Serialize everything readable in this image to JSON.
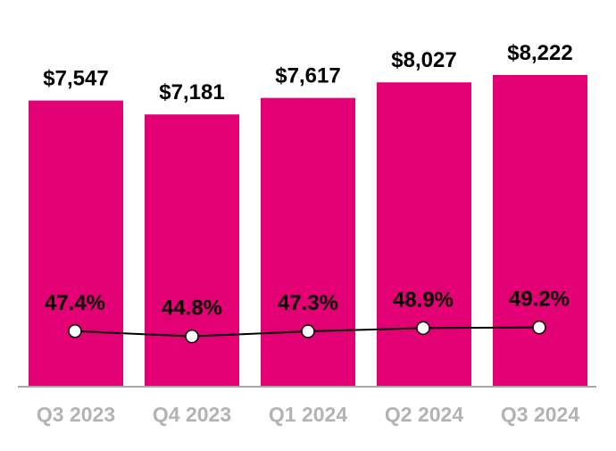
{
  "chart_data": {
    "type": "bar",
    "categories": [
      "Q3 2023",
      "Q4 2023",
      "Q1 2024",
      "Q2 2024",
      "Q3 2024"
    ],
    "series": [
      {
        "type": "bar",
        "values": [
          7547,
          7181,
          7617,
          8027,
          8222
        ],
        "labels": [
          "$7,547",
          "$7,181",
          "$7,617",
          "$8,027",
          "$8,222"
        ],
        "color": "#E20074"
      },
      {
        "type": "line",
        "axis": "secondary",
        "values": [
          47.4,
          44.8,
          47.3,
          48.9,
          49.2
        ],
        "labels": [
          "47.4%",
          "44.8%",
          "47.3%",
          "48.9%",
          "49.2%"
        ],
        "color": "#000000"
      }
    ],
    "ylim": [
      0,
      10200
    ],
    "y2lim": [
      20.1,
      210
    ],
    "grid": false,
    "legend": "none",
    "title": "",
    "xlabel": "",
    "ylabel": "",
    "colors": {
      "bar": "#E20074",
      "tick_label": "#B3B3B3",
      "axis": "#A6A6A6",
      "data_label": "#000000"
    }
  }
}
